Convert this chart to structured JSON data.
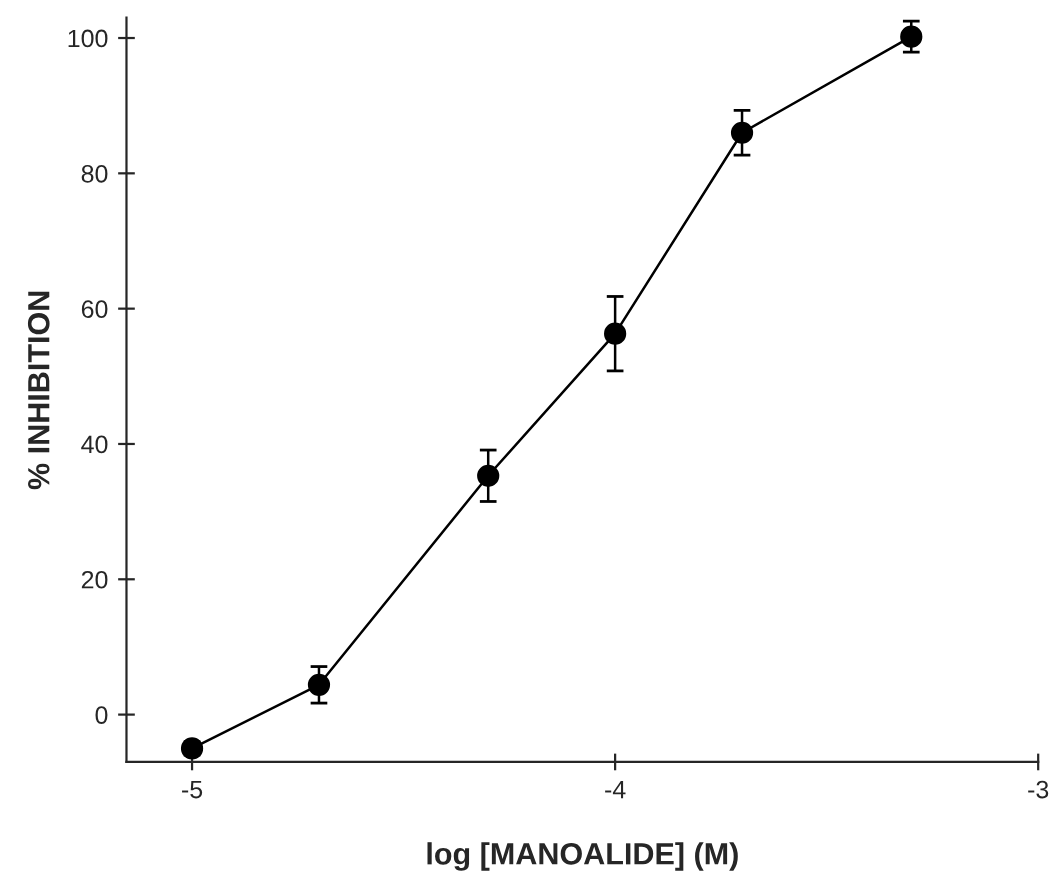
{
  "chart_data": {
    "type": "line",
    "xlabel": "log [MANOALIDE] (M)",
    "ylabel": "% INHIBITION",
    "x": [
      -5,
      -4.7,
      -4.3,
      -4,
      -3.7,
      -3.3
    ],
    "series": [
      {
        "color": "#000000",
        "values": [
          -5,
          4.4,
          35.3,
          56.3,
          86,
          100.2
        ],
        "errors": [
          1,
          2.7,
          3.8,
          5.5,
          3.3,
          2.3
        ]
      }
    ],
    "xlim": [
      -5.155,
      -3
    ],
    "ylim": [
      -7,
      103
    ],
    "xticks": [
      {
        "value": -5,
        "label": "-5"
      },
      {
        "value": -4,
        "label": "-4"
      },
      {
        "value": -3,
        "label": "-3"
      }
    ],
    "yticks": [
      0,
      20,
      40,
      60,
      80,
      100
    ],
    "marker": "circle",
    "line_style": "solid",
    "grid": false,
    "legend": false
  }
}
